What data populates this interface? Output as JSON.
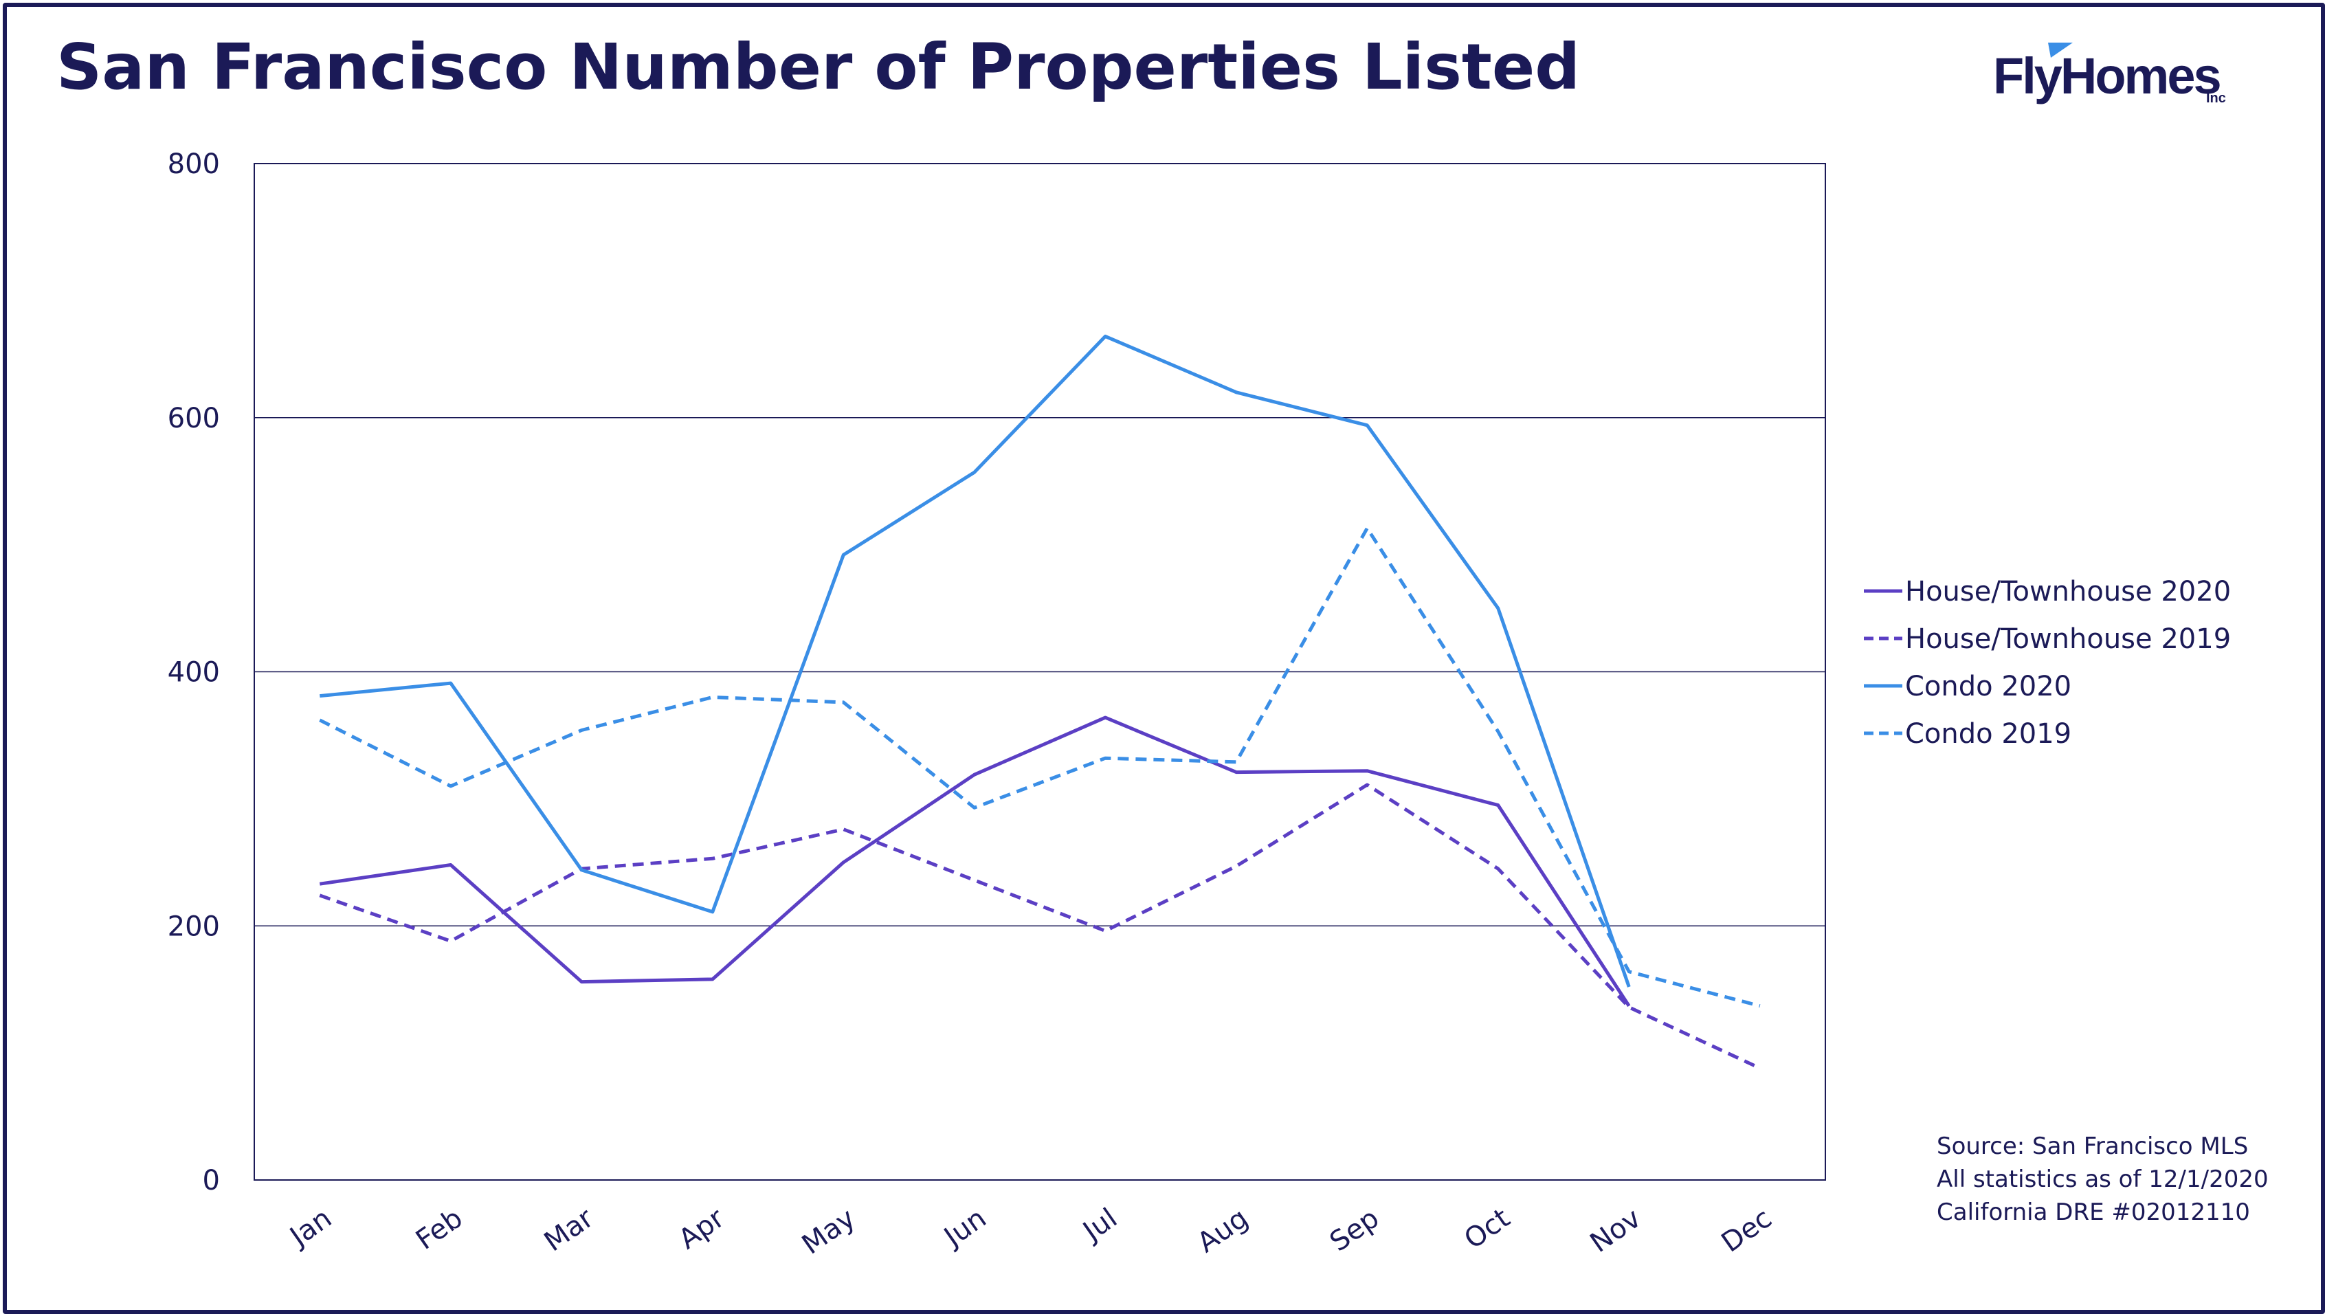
{
  "title": "San Francisco Number of Properties Listed",
  "logo": {
    "text": "FlyHomes",
    "suffix": "Inc"
  },
  "colors": {
    "navy": "#1b1a57",
    "purple": "#5b3fc4",
    "blue": "#3a8ee6"
  },
  "source_lines": [
    "Source: San Francisco MLS",
    "All statistics as of 12/1/2020",
    "California DRE #02012110"
  ],
  "chart_data": {
    "type": "line",
    "title": "San Francisco Number of Properties Listed",
    "xlabel": "",
    "ylabel": "",
    "categories": [
      "Jan",
      "Feb",
      "Mar",
      "Apr",
      "May",
      "Jun",
      "Jul",
      "Aug",
      "Sep",
      "Oct",
      "Nov",
      "Dec"
    ],
    "ylim": [
      0,
      800
    ],
    "yticks": [
      0,
      200,
      400,
      600,
      800
    ],
    "grid": "horizontal",
    "legend_position": "right",
    "series": [
      {
        "name": "House/Townhouse 2020",
        "color": "#5b3fc4",
        "dashed": false,
        "values": [
          233,
          248,
          156,
          158,
          250,
          319,
          364,
          321,
          322,
          295,
          137,
          null
        ]
      },
      {
        "name": "House/Townhouse 2019",
        "color": "#5b3fc4",
        "dashed": true,
        "values": [
          224,
          188,
          245,
          253,
          276,
          236,
          196,
          247,
          311,
          245,
          136,
          88
        ]
      },
      {
        "name": "Condo 2020",
        "color": "#3a8ee6",
        "dashed": false,
        "values": [
          381,
          391,
          244,
          211,
          492,
          557,
          664,
          620,
          594,
          450,
          152,
          null
        ]
      },
      {
        "name": "Condo 2019",
        "color": "#3a8ee6",
        "dashed": true,
        "values": [
          362,
          310,
          354,
          380,
          376,
          293,
          332,
          329,
          513,
          353,
          164,
          137
        ]
      }
    ]
  }
}
